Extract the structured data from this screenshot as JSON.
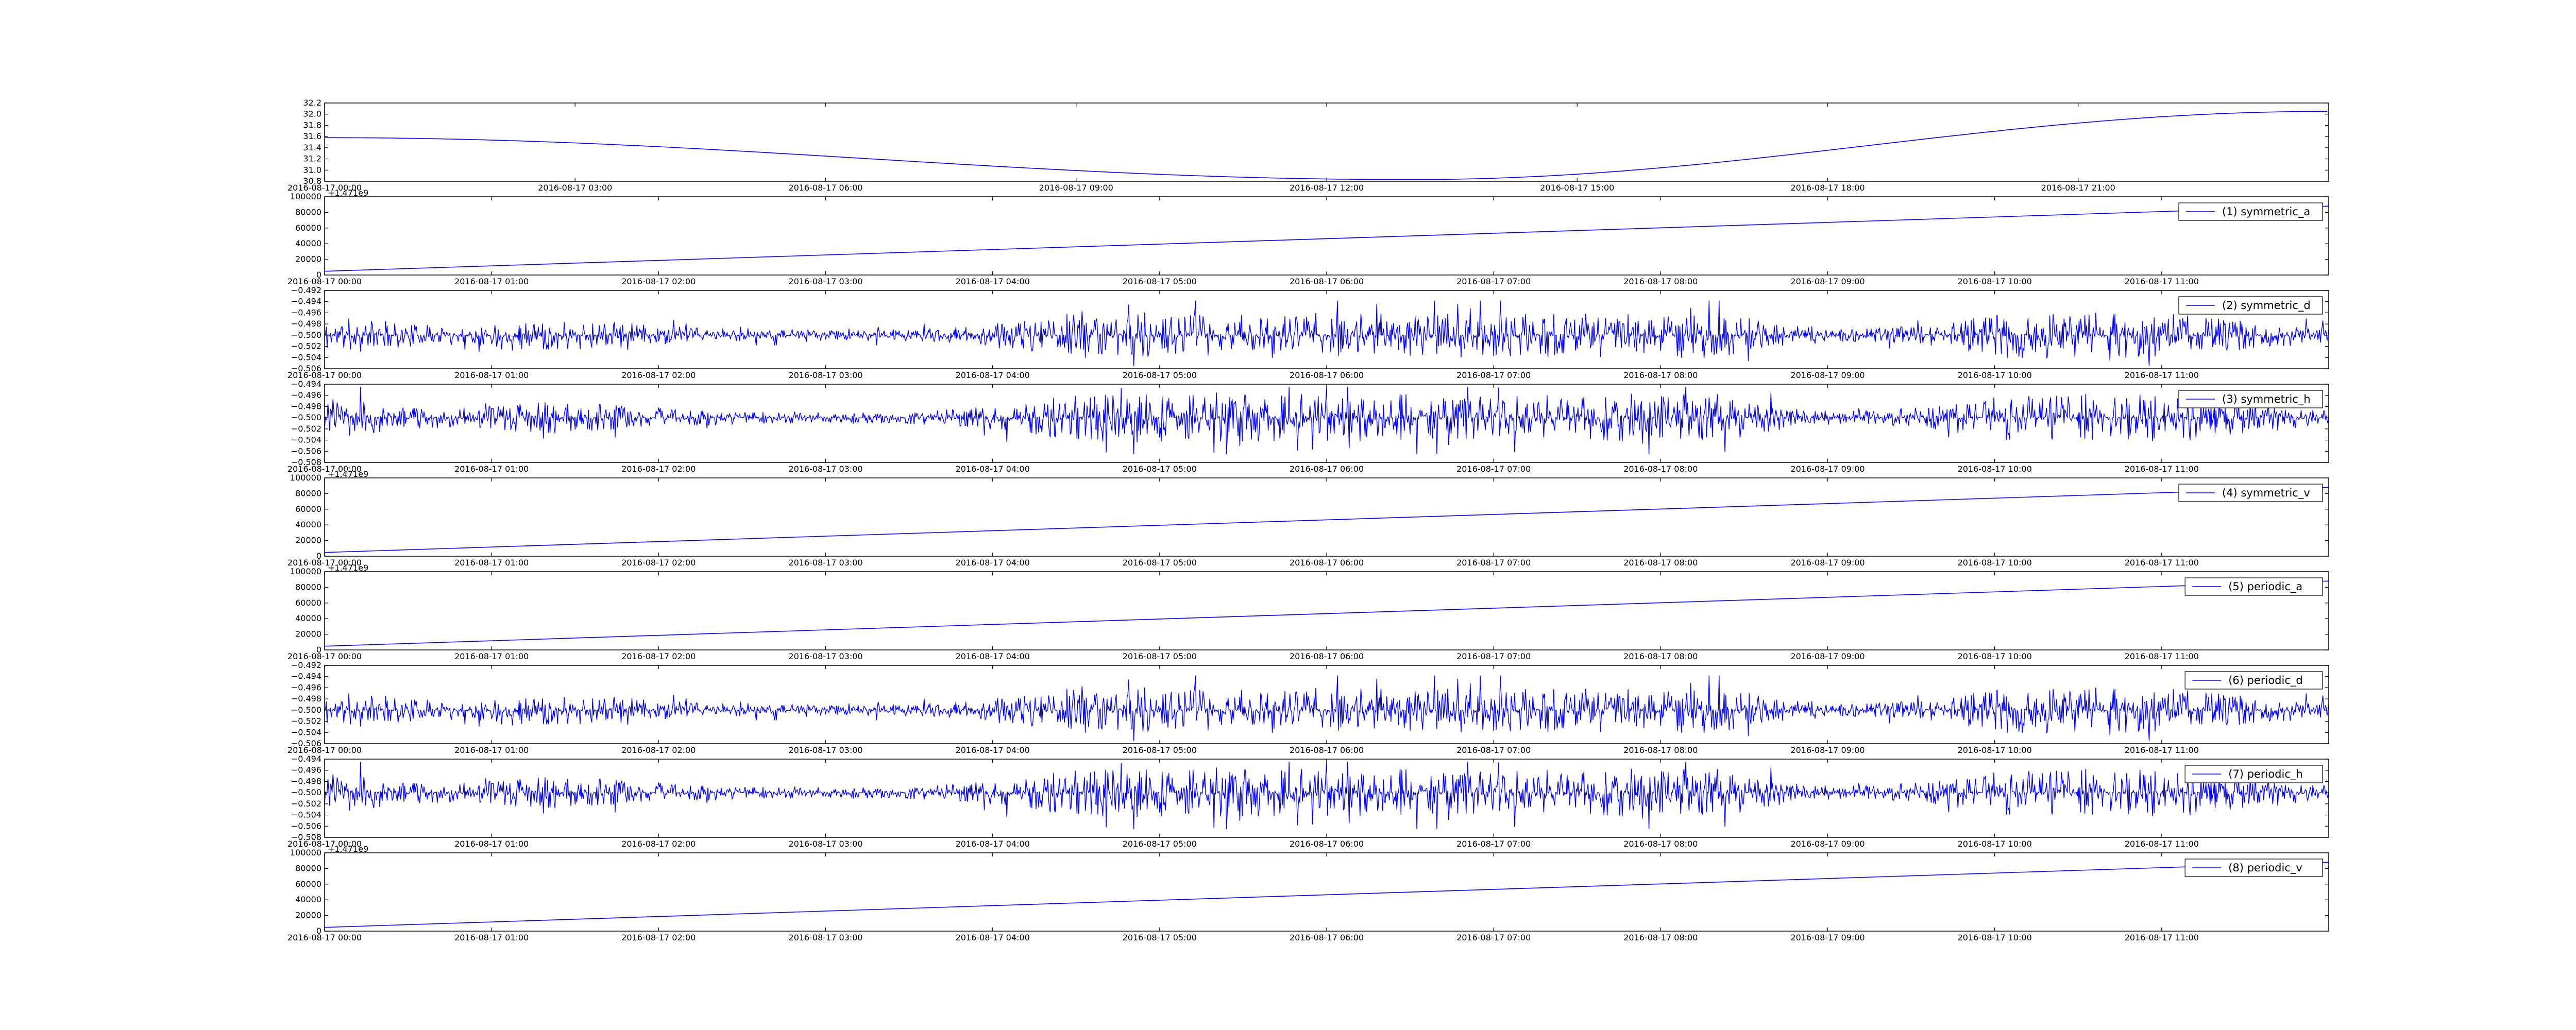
{
  "colors": {
    "line": "#0000ff",
    "axes": "#000000",
    "background": "#ffffff"
  },
  "chart_data": [
    {
      "type": "line",
      "legend": "",
      "legend_position": "none",
      "grid": false,
      "xlabel": "",
      "ylabel": "",
      "offset_text": "",
      "x_kind": "time",
      "xlim": [
        "2016-08-17 00:00",
        "2016-08-18 00:00"
      ],
      "xticks": [
        "2016-08-17 00:00",
        "2016-08-17 03:00",
        "2016-08-17 06:00",
        "2016-08-17 09:00",
        "2016-08-17 12:00",
        "2016-08-17 15:00",
        "2016-08-17 18:00",
        "2016-08-17 21:00"
      ],
      "ylim": [
        30.8,
        32.2
      ],
      "yticks": [
        "30.8",
        "31.0",
        "31.2",
        "31.4",
        "31.6",
        "31.8",
        "32.0",
        "32.2"
      ],
      "series": [
        {
          "name": "",
          "shape": "cosine",
          "x": [
            "2016-08-17 00:00",
            "2016-08-17 06:00",
            "2016-08-17 13:00",
            "2016-08-17 18:00",
            "2016-08-17 23:59"
          ],
          "y": [
            31.58,
            31.3,
            30.83,
            31.35,
            32.05
          ]
        }
      ]
    },
    {
      "type": "line",
      "legend": "(1) symmetric_a",
      "legend_position": "top-right",
      "grid": false,
      "xlabel": "",
      "ylabel": "",
      "offset_text": "+1.471e9",
      "x_kind": "time",
      "xlim": [
        "2016-08-17 00:00",
        "2016-08-17 12:00"
      ],
      "xticks": [
        "2016-08-17 00:00",
        "2016-08-17 01:00",
        "2016-08-17 02:00",
        "2016-08-17 03:00",
        "2016-08-17 04:00",
        "2016-08-17 05:00",
        "2016-08-17 06:00",
        "2016-08-17 07:00",
        "2016-08-17 08:00",
        "2016-08-17 09:00",
        "2016-08-17 10:00",
        "2016-08-17 11:00"
      ],
      "ylim": [
        0,
        100000
      ],
      "yticks": [
        "0",
        "20000",
        "40000",
        "60000",
        "80000",
        "100000"
      ],
      "series": [
        {
          "name": "(1) symmetric_a",
          "shape": "linear",
          "x": [
            "2016-08-17 00:00",
            "2016-08-17 12:00"
          ],
          "y": [
            4800,
            88000
          ]
        }
      ]
    },
    {
      "type": "line",
      "legend": "(2) symmetric_d",
      "legend_position": "top-right",
      "grid": false,
      "xlabel": "",
      "ylabel": "",
      "offset_text": "",
      "x_kind": "time",
      "xlim": [
        "2016-08-17 00:00",
        "2016-08-17 12:00"
      ],
      "xticks": [
        "2016-08-17 00:00",
        "2016-08-17 01:00",
        "2016-08-17 02:00",
        "2016-08-17 03:00",
        "2016-08-17 04:00",
        "2016-08-17 05:00",
        "2016-08-17 06:00",
        "2016-08-17 07:00",
        "2016-08-17 08:00",
        "2016-08-17 09:00",
        "2016-08-17 10:00",
        "2016-08-17 11:00"
      ],
      "ylim": [
        -0.506,
        -0.492
      ],
      "yticks": [
        "−0.506",
        "−0.504",
        "−0.502",
        "−0.500",
        "−0.498",
        "−0.496",
        "−0.494",
        "−0.492"
      ],
      "series": [
        {
          "name": "(2) symmetric_d",
          "shape": "noise",
          "baseline": -0.5,
          "seed": 11,
          "noise_min": -0.5055,
          "noise_max": -0.4938
        }
      ]
    },
    {
      "type": "line",
      "legend": "(3) symmetric_h",
      "legend_position": "top-right",
      "grid": false,
      "xlabel": "",
      "ylabel": "",
      "offset_text": "",
      "x_kind": "time",
      "xlim": [
        "2016-08-17 00:00",
        "2016-08-17 12:00"
      ],
      "xticks": [
        "2016-08-17 00:00",
        "2016-08-17 01:00",
        "2016-08-17 02:00",
        "2016-08-17 03:00",
        "2016-08-17 04:00",
        "2016-08-17 05:00",
        "2016-08-17 06:00",
        "2016-08-17 07:00",
        "2016-08-17 08:00",
        "2016-08-17 09:00",
        "2016-08-17 10:00",
        "2016-08-17 11:00"
      ],
      "ylim": [
        -0.508,
        -0.494
      ],
      "yticks": [
        "−0.508",
        "−0.506",
        "−0.504",
        "−0.502",
        "−0.500",
        "−0.498",
        "−0.496",
        "−0.494"
      ],
      "series": [
        {
          "name": "(3) symmetric_h",
          "shape": "noise",
          "baseline": -0.5,
          "seed": 23,
          "noise_min": -0.5065,
          "noise_max": -0.4945
        }
      ]
    },
    {
      "type": "line",
      "legend": "(4) symmetric_v",
      "legend_position": "top-right",
      "grid": false,
      "xlabel": "",
      "ylabel": "",
      "offset_text": "+1.471e9",
      "x_kind": "time",
      "xlim": [
        "2016-08-17 00:00",
        "2016-08-17 12:00"
      ],
      "xticks": [
        "2016-08-17 00:00",
        "2016-08-17 01:00",
        "2016-08-17 02:00",
        "2016-08-17 03:00",
        "2016-08-17 04:00",
        "2016-08-17 05:00",
        "2016-08-17 06:00",
        "2016-08-17 07:00",
        "2016-08-17 08:00",
        "2016-08-17 09:00",
        "2016-08-17 10:00",
        "2016-08-17 11:00"
      ],
      "ylim": [
        0,
        100000
      ],
      "yticks": [
        "0",
        "20000",
        "40000",
        "60000",
        "80000",
        "100000"
      ],
      "series": [
        {
          "name": "(4) symmetric_v",
          "shape": "linear",
          "x": [
            "2016-08-17 00:00",
            "2016-08-17 12:00"
          ],
          "y": [
            4800,
            88000
          ]
        }
      ]
    },
    {
      "type": "line",
      "legend": "(5) periodic_a",
      "legend_position": "top-right",
      "grid": false,
      "xlabel": "",
      "ylabel": "",
      "offset_text": "+1.471e9",
      "x_kind": "time",
      "xlim": [
        "2016-08-17 00:00",
        "2016-08-17 12:00"
      ],
      "xticks": [
        "2016-08-17 00:00",
        "2016-08-17 01:00",
        "2016-08-17 02:00",
        "2016-08-17 03:00",
        "2016-08-17 04:00",
        "2016-08-17 05:00",
        "2016-08-17 06:00",
        "2016-08-17 07:00",
        "2016-08-17 08:00",
        "2016-08-17 09:00",
        "2016-08-17 10:00",
        "2016-08-17 11:00"
      ],
      "ylim": [
        0,
        100000
      ],
      "yticks": [
        "0",
        "20000",
        "40000",
        "60000",
        "80000",
        "100000"
      ],
      "series": [
        {
          "name": "(5) periodic_a",
          "shape": "linear",
          "x": [
            "2016-08-17 00:00",
            "2016-08-17 12:00"
          ],
          "y": [
            4800,
            88000
          ]
        }
      ]
    },
    {
      "type": "line",
      "legend": "(6) periodic_d",
      "legend_position": "top-right",
      "grid": false,
      "xlabel": "",
      "ylabel": "",
      "offset_text": "",
      "x_kind": "time",
      "xlim": [
        "2016-08-17 00:00",
        "2016-08-17 12:00"
      ],
      "xticks": [
        "2016-08-17 00:00",
        "2016-08-17 01:00",
        "2016-08-17 02:00",
        "2016-08-17 03:00",
        "2016-08-17 04:00",
        "2016-08-17 05:00",
        "2016-08-17 06:00",
        "2016-08-17 07:00",
        "2016-08-17 08:00",
        "2016-08-17 09:00",
        "2016-08-17 10:00",
        "2016-08-17 11:00"
      ],
      "ylim": [
        -0.506,
        -0.492
      ],
      "yticks": [
        "−0.506",
        "−0.504",
        "−0.502",
        "−0.500",
        "−0.498",
        "−0.496",
        "−0.494",
        "−0.492"
      ],
      "series": [
        {
          "name": "(6) periodic_d",
          "shape": "noise",
          "baseline": -0.5,
          "seed": 11,
          "noise_min": -0.5055,
          "noise_max": -0.4938
        }
      ]
    },
    {
      "type": "line",
      "legend": "(7) periodic_h",
      "legend_position": "top-right",
      "grid": false,
      "xlabel": "",
      "ylabel": "",
      "offset_text": "",
      "x_kind": "time",
      "xlim": [
        "2016-08-17 00:00",
        "2016-08-17 12:00"
      ],
      "xticks": [
        "2016-08-17 00:00",
        "2016-08-17 01:00",
        "2016-08-17 02:00",
        "2016-08-17 03:00",
        "2016-08-17 04:00",
        "2016-08-17 05:00",
        "2016-08-17 06:00",
        "2016-08-17 07:00",
        "2016-08-17 08:00",
        "2016-08-17 09:00",
        "2016-08-17 10:00",
        "2016-08-17 11:00"
      ],
      "ylim": [
        -0.508,
        -0.494
      ],
      "yticks": [
        "−0.508",
        "−0.506",
        "−0.504",
        "−0.502",
        "−0.500",
        "−0.498",
        "−0.496",
        "−0.494"
      ],
      "series": [
        {
          "name": "(7) periodic_h",
          "shape": "noise",
          "baseline": -0.5,
          "seed": 23,
          "noise_min": -0.5065,
          "noise_max": -0.4945
        }
      ]
    },
    {
      "type": "line",
      "legend": "(8) periodic_v",
      "legend_position": "top-right",
      "grid": false,
      "xlabel": "",
      "ylabel": "",
      "offset_text": "+1.471e9",
      "x_kind": "time",
      "xlim": [
        "2016-08-17 00:00",
        "2016-08-17 12:00"
      ],
      "xticks": [
        "2016-08-17 00:00",
        "2016-08-17 01:00",
        "2016-08-17 02:00",
        "2016-08-17 03:00",
        "2016-08-17 04:00",
        "2016-08-17 05:00",
        "2016-08-17 06:00",
        "2016-08-17 07:00",
        "2016-08-17 08:00",
        "2016-08-17 09:00",
        "2016-08-17 10:00",
        "2016-08-17 11:00"
      ],
      "ylim": [
        0,
        100000
      ],
      "yticks": [
        "0",
        "20000",
        "40000",
        "60000",
        "80000",
        "100000"
      ],
      "series": [
        {
          "name": "(8) periodic_v",
          "shape": "linear",
          "x": [
            "2016-08-17 00:00",
            "2016-08-17 12:00"
          ],
          "y": [
            4800,
            88000
          ]
        }
      ]
    }
  ]
}
